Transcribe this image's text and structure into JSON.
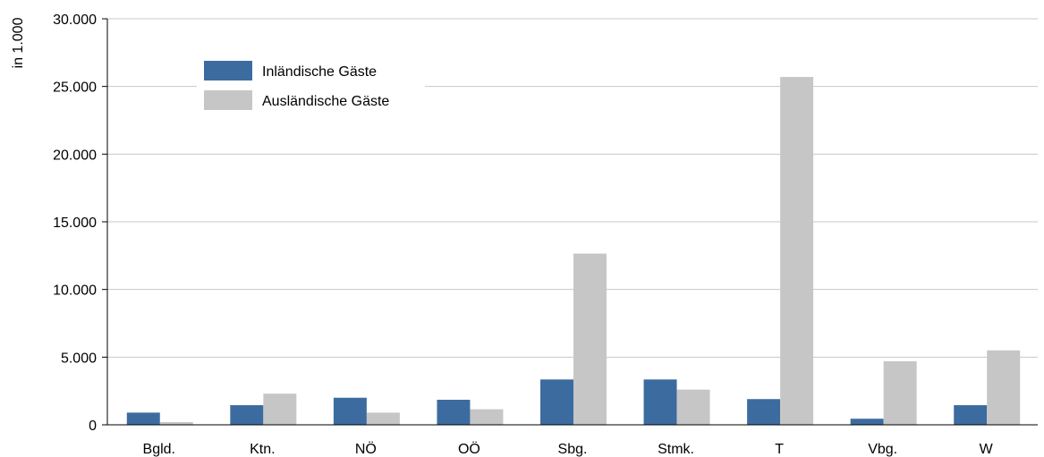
{
  "chart_data": {
    "type": "bar",
    "title": "",
    "xlabel": "",
    "ylabel": "in 1.000",
    "ylim": [
      0,
      30000
    ],
    "yticks": [
      0,
      5000,
      10000,
      15000,
      20000,
      25000,
      30000
    ],
    "ytick_labels": [
      "0",
      "5.000",
      "10.000",
      "15.000",
      "20.000",
      "25.000",
      "30.000"
    ],
    "grid": true,
    "legend_position": "top-left",
    "categories": [
      "Bgld.",
      "Ktn.",
      "NÖ",
      "OÖ",
      "Sbg.",
      "Stmk.",
      "T",
      "Vbg.",
      "W"
    ],
    "series": [
      {
        "name": "Inländische Gäste",
        "color": "#3c6c9f",
        "values": [
          900,
          1450,
          2000,
          1850,
          3350,
          3350,
          1900,
          450,
          1450
        ]
      },
      {
        "name": "Ausländische Gäste",
        "color": "#c6c6c6",
        "values": [
          200,
          2300,
          900,
          1150,
          12650,
          2600,
          25700,
          4700,
          5500
        ]
      }
    ]
  }
}
